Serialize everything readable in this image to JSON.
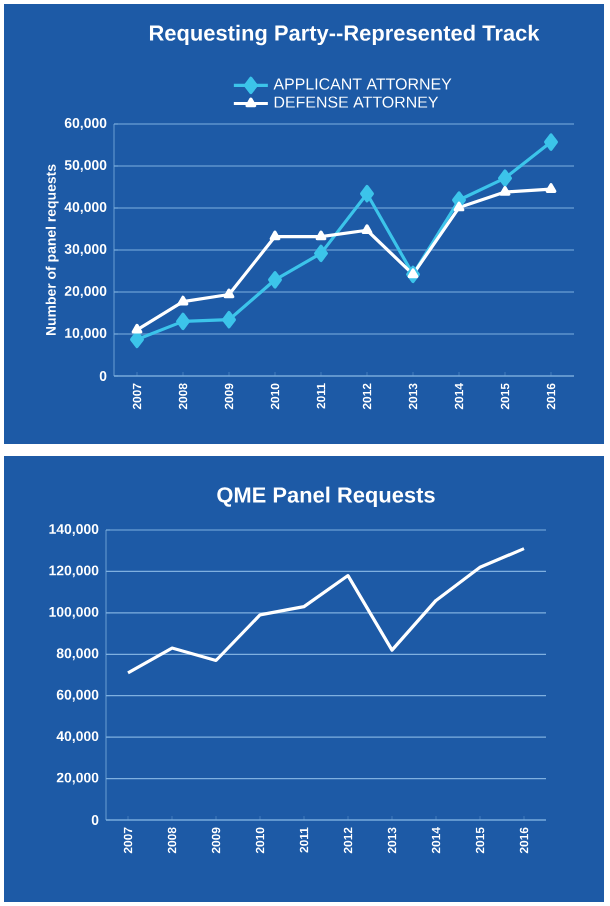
{
  "chart_data": [
    {
      "type": "line",
      "title": "Requesting Party--Represented Track",
      "ylabel": "Number of panel requests",
      "categories": [
        "2007",
        "2008",
        "2009",
        "2010",
        "2011",
        "2012",
        "2013",
        "2014",
        "2015",
        "2016"
      ],
      "series": [
        {
          "name": "APPLICANT ATTORNEY",
          "color": "#3cc4ea",
          "marker": "diamond",
          "values": [
            8700,
            13000,
            13400,
            22900,
            29200,
            43400,
            24200,
            41900,
            47100,
            55700
          ]
        },
        {
          "name": "DEFENSE ATTORNEY",
          "color": "#ffffff",
          "marker": "triangle",
          "values": [
            11000,
            17700,
            19400,
            33200,
            33200,
            34700,
            24200,
            40100,
            43800,
            44500
          ]
        }
      ],
      "ylim": [
        0,
        60000
      ],
      "yticks": [
        0,
        {
          "value": 10000,
          "label": "10,000"
        },
        {
          "value": 20000,
          "label": "20,000"
        },
        {
          "value": 30000,
          "label": "30,000"
        },
        {
          "value": 40000,
          "label": "40,000"
        },
        {
          "value": 50000,
          "label": "50,000"
        },
        {
          "value": 60000,
          "label": "60,000"
        }
      ],
      "grid": "y",
      "legend": "top",
      "line_style": "solid"
    },
    {
      "type": "line",
      "title": "QME Panel Requests",
      "categories": [
        "2007",
        "2008",
        "2009",
        "2010",
        "2011",
        "2012",
        "2013",
        "2014",
        "2015",
        "2016"
      ],
      "series": [
        {
          "color": "#ffffff",
          "values": [
            71000,
            83000,
            77000,
            99000,
            103000,
            118000,
            82000,
            106000,
            122000,
            131000
          ]
        }
      ],
      "ylim": [
        0,
        140000
      ],
      "yticks": [
        0,
        {
          "value": 20000,
          "label": "20,000"
        },
        {
          "value": 40000,
          "label": "40,000"
        },
        {
          "value": 60000,
          "label": "60,000"
        },
        {
          "value": 80000,
          "label": "80,000"
        },
        {
          "value": 100000,
          "label": "100,000"
        },
        {
          "value": 120000,
          "label": "120,000"
        },
        {
          "value": 140000,
          "label": "140,000"
        }
      ],
      "grid": "y",
      "legend": false,
      "marker": "none",
      "line_style": "solid"
    }
  ]
}
